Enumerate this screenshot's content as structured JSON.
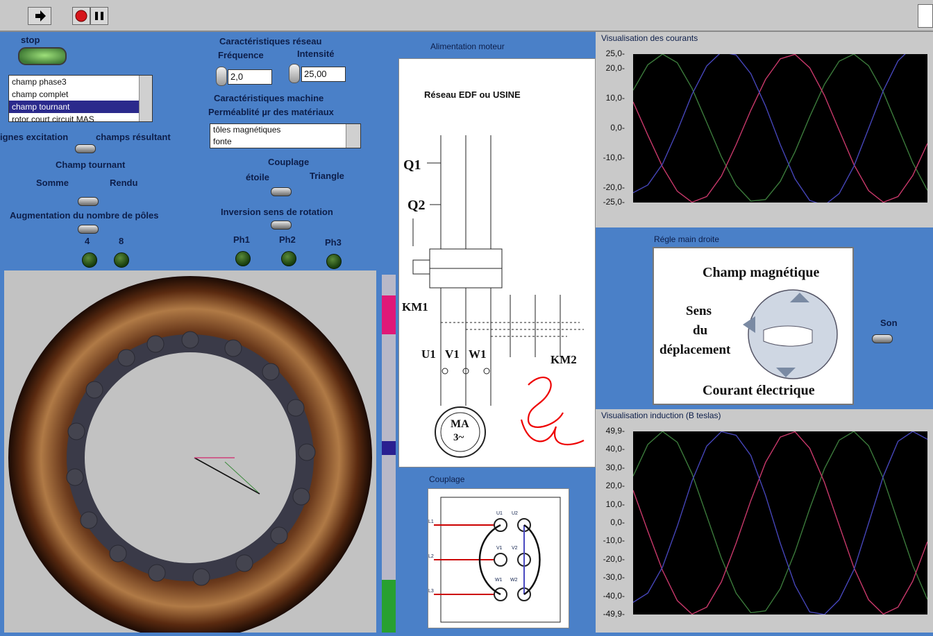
{
  "toolbar": {
    "run_icon": "arrow-right-icon",
    "stop_icon": "stop-icon",
    "pause_icon": "pause-icon"
  },
  "controls": {
    "stop_label": "stop",
    "list": {
      "items": [
        "champ phase3",
        "champ complet",
        "champ tournant",
        "rotor court circuit MAS"
      ],
      "selected": 2
    },
    "lignes_excitation": "ignes excitation",
    "champs_resultant": "champs résultant",
    "champ_tournant": "Champ tournant",
    "somme": "Somme",
    "rendu": "Rendu",
    "augmentation": "Augmentation du nombre de pôles",
    "pole_4": "4",
    "pole_8": "8"
  },
  "network": {
    "title": "Caractéristiques réseau",
    "freq_label": "Fréquence",
    "intens_label": "Intensité",
    "freq_value": "2,0",
    "intens_value": "25,00",
    "machine_title": "Caractéristiques machine",
    "perm_label": "Perméablité µr des matériaux",
    "materials": [
      "tôles magnétiques",
      "fonte"
    ],
    "couplage": "Couplage",
    "etoile": "étoile",
    "triangle": "Triangle",
    "inversion": "Inversion sens de rotation",
    "ph1": "Ph1",
    "ph2": "Ph2",
    "ph3": "Ph3"
  },
  "alimentation": {
    "title": "Alimentation moteur",
    "reseau": "Réseau EDF ou USINE",
    "q1": "Q1",
    "q2": "Q2",
    "km1": "KM1",
    "km2": "KM2",
    "u1": "U1",
    "v1": "V1",
    "w1": "W1",
    "ma": "MA",
    "ma3": "3~"
  },
  "couplage_panel": {
    "title": "Couplage",
    "left": [
      "L1",
      "L2",
      "L3"
    ],
    "mid": [
      "U1",
      "V1",
      "W1"
    ],
    "right": [
      "U2",
      "V2",
      "W2"
    ]
  },
  "regle": {
    "title": "Régle main droite",
    "champ": "Champ magnétique",
    "sens1": "Sens",
    "sens2": "du",
    "sens3": "déplacement",
    "courant": "Courant électrique",
    "son": "Son"
  },
  "colors": {
    "phase_a": "#3b7a3b",
    "phase_b": "#c8386a",
    "phase_c": "#4545b8"
  },
  "chart_data": [
    {
      "type": "line",
      "title": "Visualisation des courants",
      "ylabel": "",
      "ylim": [
        -25,
        25
      ],
      "yticks": [
        "25,0",
        "20,0",
        "10,0",
        "0,0",
        "-10,0",
        "-20,0",
        "-25,0"
      ],
      "x": [
        0,
        0.1,
        0.2,
        0.3,
        0.4,
        0.5,
        0.6,
        0.7,
        0.8,
        0.9,
        1.0,
        1.1,
        1.2,
        1.3,
        1.4,
        1.5,
        1.6,
        1.7,
        1.8,
        1.9,
        2.0
      ],
      "series": [
        {
          "color": "#3b7a3b",
          "values": [
            12.8,
            21.4,
            25.0,
            22.1,
            13.5,
            2.0,
            -9.6,
            -19.2,
            -24.5,
            -24.0,
            -17.9,
            -7.9,
            3.9,
            14.8,
            22.6,
            25.0,
            21.1,
            12.2,
            0.3,
            -11.6,
            -20.9
          ]
        },
        {
          "color": "#c8386a",
          "values": [
            8.9,
            -2.3,
            -13.0,
            -21.2,
            -24.9,
            -23.0,
            -16.1,
            -5.5,
            6.1,
            16.5,
            23.4,
            24.9,
            20.4,
            11.1,
            -0.6,
            -12.2,
            -21.0,
            -24.9,
            -23.0,
            -15.9,
            -5.1
          ]
        },
        {
          "color": "#4545b8",
          "values": [
            -21.7,
            -19.1,
            -12.0,
            -0.9,
            11.4,
            21.0,
            25.7,
            24.7,
            18.4,
            7.5,
            -5.5,
            -17.0,
            -24.3,
            -25.9,
            -22.0,
            -12.8,
            -0.1,
            12.7,
            22.7,
            27.5,
            26.0
          ]
        }
      ]
    },
    {
      "type": "line",
      "title": "Visualisation induction (B teslas)",
      "ylabel": "",
      "ylim": [
        -49.9,
        49.9
      ],
      "yticks": [
        "49,9",
        "40,0",
        "30,0",
        "20,0",
        "10,0",
        "0,0",
        "-10,0",
        "-20,0",
        "-30,0",
        "-40,0",
        "-49,9"
      ],
      "x": [
        0,
        0.1,
        0.2,
        0.3,
        0.4,
        0.5,
        0.6,
        0.7,
        0.8,
        0.9,
        1.0,
        1.1,
        1.2,
        1.3,
        1.4,
        1.5,
        1.6,
        1.7,
        1.8,
        1.9,
        2.0
      ],
      "series": [
        {
          "color": "#3b7a3b",
          "values": [
            25.5,
            42.8,
            49.9,
            44.0,
            26.9,
            3.9,
            -19.2,
            -38.3,
            -48.9,
            -47.9,
            -35.8,
            -15.8,
            7.8,
            29.6,
            45.1,
            49.9,
            42.1,
            24.3,
            0.5,
            -23.1,
            -41.7
          ]
        },
        {
          "color": "#c8386a",
          "values": [
            17.8,
            -4.5,
            -25.9,
            -42.3,
            -49.7,
            -45.9,
            -32.1,
            -11.0,
            12.2,
            33.0,
            46.8,
            49.7,
            40.7,
            22.1,
            -1.2,
            -24.3,
            -41.9,
            -49.7,
            -45.9,
            -31.7,
            -10.2
          ]
        },
        {
          "color": "#4545b8",
          "values": [
            -43.3,
            -38.2,
            -24.0,
            -1.8,
            22.8,
            41.9,
            49.8,
            47.8,
            36.8,
            15.0,
            -11.0,
            -33.9,
            -48.5,
            -49.9,
            -41.9,
            -25.6,
            -0.2,
            25.4,
            44.5,
            49.9,
            45.6
          ]
        }
      ]
    }
  ]
}
